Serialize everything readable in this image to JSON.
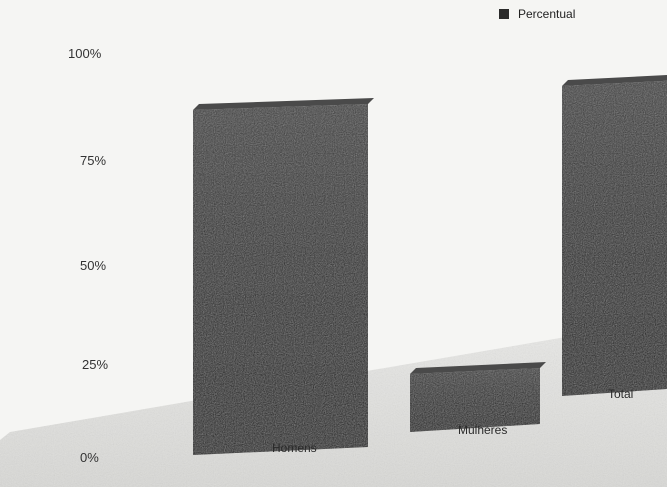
{
  "chart_data": {
    "type": "bar",
    "categories": [
      "Homens",
      "Mulheres",
      "Total"
    ],
    "series": [
      {
        "name": "Percentual",
        "values": [
          88,
          10,
          80
        ]
      }
    ],
    "yticks": [
      "0%",
      "25%",
      "50%",
      "75%",
      "100%"
    ],
    "ylim": [
      0,
      100
    ],
    "legend": "top-right",
    "bar_color": "#1b1b1b",
    "background": "#f5f5f3"
  }
}
